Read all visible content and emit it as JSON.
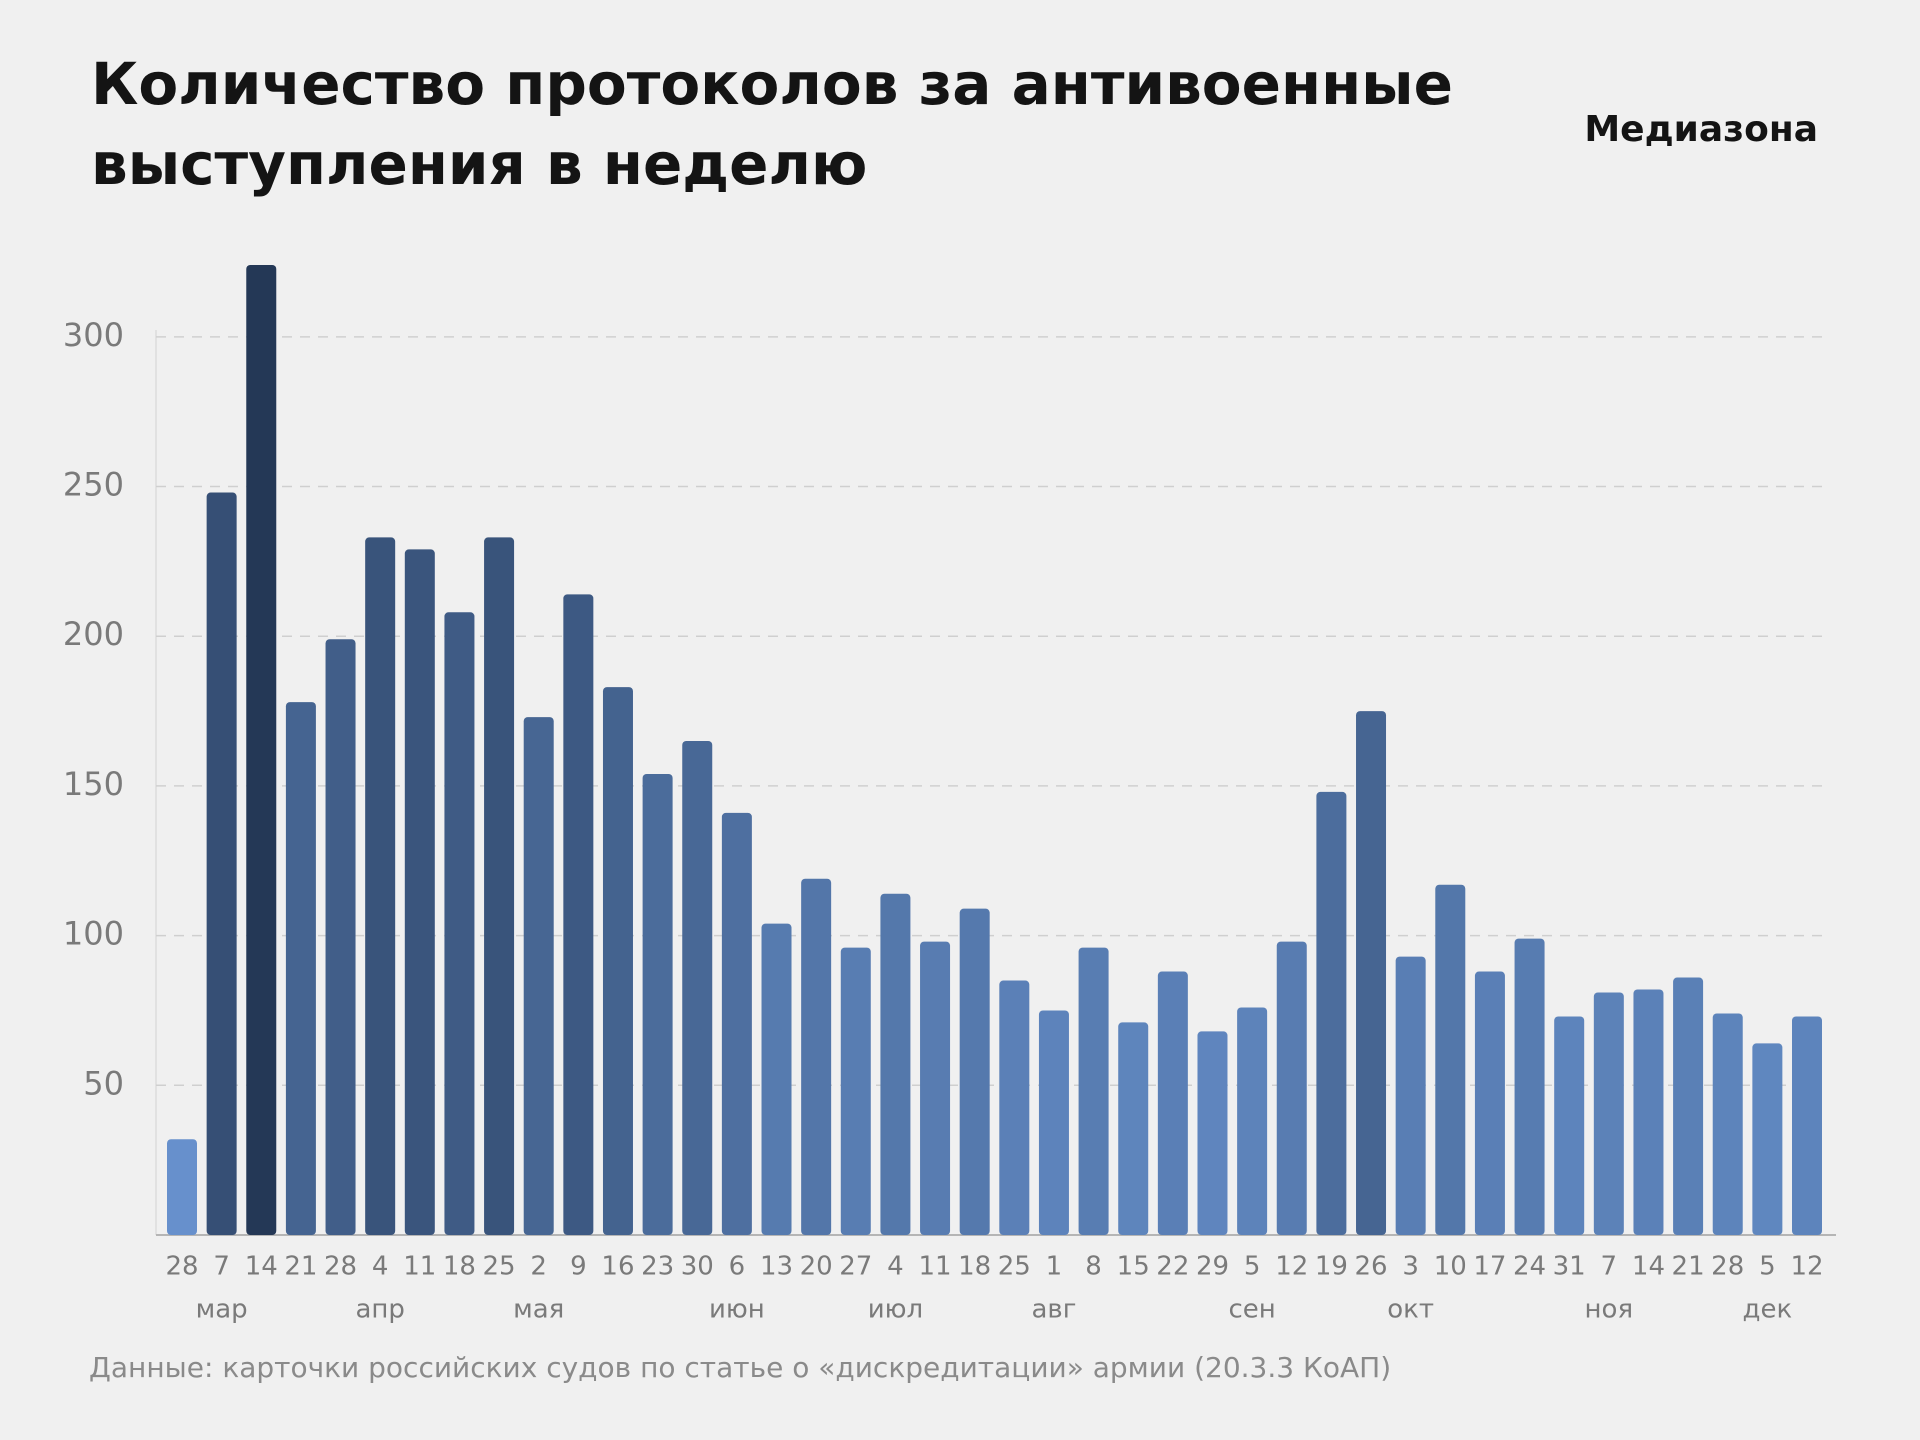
{
  "chart_data": {
    "type": "bar",
    "title": [
      "Количество протоколов за антивоенные",
      "выступления в неделю"
    ],
    "logo": "Медиазона",
    "source": "Данные: карточки российских судов по статье о «дискредитации» армии (20.3.3 КоАП)",
    "categories": [
      "28",
      "7",
      "14",
      "21",
      "28",
      "4",
      "11",
      "18",
      "25",
      "2",
      "9",
      "16",
      "23",
      "30",
      "6",
      "13",
      "20",
      "27",
      "4",
      "11",
      "18",
      "25",
      "1",
      "8",
      "15",
      "22",
      "29",
      "5",
      "12",
      "19",
      "26",
      "3",
      "10",
      "17",
      "24",
      "31",
      "7",
      "14",
      "21",
      "28",
      "5",
      "12"
    ],
    "month_labels": [
      null,
      "мар",
      null,
      null,
      null,
      "апр",
      null,
      null,
      null,
      "мая",
      null,
      null,
      null,
      null,
      "июн",
      null,
      null,
      null,
      "июл",
      null,
      null,
      null,
      "авг",
      null,
      null,
      null,
      null,
      "сен",
      null,
      null,
      null,
      "окт",
      null,
      null,
      null,
      null,
      "ноя",
      null,
      null,
      null,
      "дек",
      null
    ],
    "values": [
      32,
      248,
      324,
      178,
      199,
      233,
      229,
      208,
      233,
      173,
      214,
      183,
      154,
      165,
      141,
      104,
      119,
      96,
      114,
      98,
      109,
      85,
      75,
      96,
      71,
      88,
      68,
      76,
      98,
      148,
      175,
      93,
      117,
      88,
      99,
      73,
      81,
      82,
      86,
      74,
      64,
      73
    ],
    "color_scale": [
      "#6e9ad9",
      "#243856"
    ],
    "ylim": [
      0,
      325
    ],
    "yticks": [
      50,
      100,
      150,
      200,
      250,
      300
    ],
    "grid": true
  }
}
